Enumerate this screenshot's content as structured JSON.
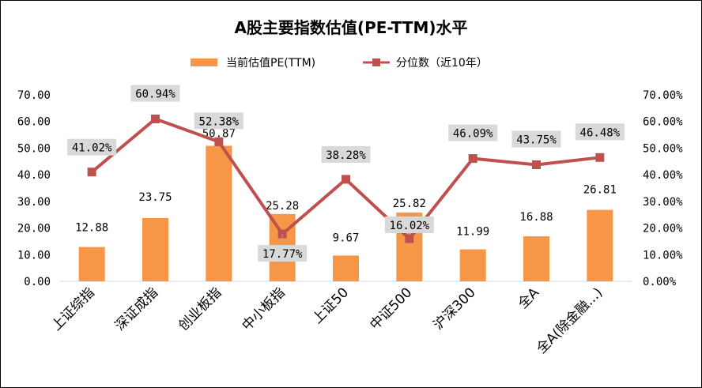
{
  "chart_data": {
    "type": "bar",
    "title": "A股主要指数估值(PE-TTM)水平",
    "categories": [
      "上证综指",
      "深证成指",
      "创业板指",
      "中小板指",
      "上证50",
      "中证500",
      "沪深300",
      "全A",
      "全A(除金融...)"
    ],
    "series": [
      {
        "name": "当前估值PE(TTM)",
        "type": "bar",
        "axis": "left",
        "values": [
          12.88,
          23.75,
          50.87,
          25.28,
          9.67,
          25.82,
          11.99,
          16.88,
          26.81
        ],
        "labels": [
          "12.88",
          "23.75",
          "50.87",
          "25.28",
          "9.67",
          "25.82",
          "11.99",
          "16.88",
          "26.81"
        ]
      },
      {
        "name": "分位数（近10年）",
        "type": "line",
        "axis": "right",
        "values": [
          41.02,
          60.94,
          52.38,
          17.77,
          38.28,
          16.02,
          46.09,
          43.75,
          46.48
        ],
        "labels": [
          "41.02%",
          "60.94%",
          "52.38%",
          "17.77%",
          "38.28%",
          "16.02%",
          "46.09%",
          "43.75%",
          "46.48%"
        ]
      }
    ],
    "ylim": [
      0,
      70
    ],
    "y2lim": [
      0,
      70
    ],
    "y_ticks": [
      "0.00",
      "10.00",
      "20.00",
      "30.00",
      "40.00",
      "50.00",
      "60.00",
      "70.00"
    ],
    "y2_ticks": [
      "0.00%",
      "10.00%",
      "20.00%",
      "30.00%",
      "40.00%",
      "50.00%",
      "60.00%",
      "70.00%"
    ],
    "grid": false,
    "legend_position": "top-center",
    "colors": {
      "bar": "#f79646",
      "line": "#c0504d",
      "label_box": "#d9d9d9",
      "leader": "#a6a6a6"
    }
  }
}
